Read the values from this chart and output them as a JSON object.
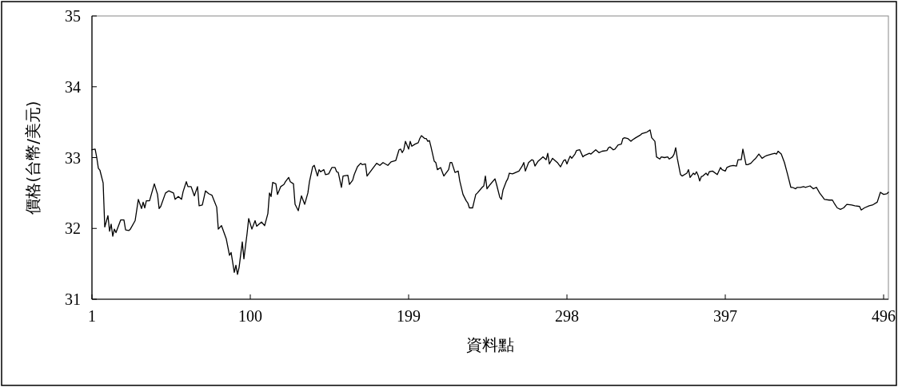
{
  "chart_data": {
    "type": "line",
    "xlabel": "資料點",
    "ylabel": "價格(台幣/美元)",
    "color": "#000000",
    "xlim": [
      1,
      499
    ],
    "ylim": [
      31,
      35
    ],
    "xticks": [
      1,
      100,
      199,
      298,
      397,
      496
    ],
    "yticks": [
      31,
      32,
      33,
      34,
      35
    ],
    "x": [
      1,
      3,
      4,
      5,
      6,
      8,
      9,
      11,
      12,
      13,
      14,
      15,
      16,
      19,
      21,
      22,
      24,
      25,
      28,
      30,
      32,
      33,
      34,
      35,
      37,
      40,
      42,
      43,
      44,
      47,
      49,
      52,
      53,
      55,
      57,
      58,
      60,
      61,
      63,
      65,
      67,
      68,
      70,
      72,
      74,
      76,
      79,
      80,
      82,
      85,
      87,
      88,
      90,
      91,
      92,
      93,
      95,
      96,
      98,
      99,
      101,
      103,
      104,
      107,
      109,
      111,
      112,
      113,
      114,
      116,
      117,
      119,
      121,
      122,
      124,
      125,
      127,
      128,
      130,
      132,
      134,
      136,
      137,
      139,
      140,
      142,
      143,
      144,
      146,
      147,
      149,
      151,
      153,
      154,
      155,
      157,
      158,
      161,
      162,
      164,
      165,
      167,
      169,
      170,
      172,
      173,
      176,
      179,
      181,
      183,
      186,
      188,
      191,
      193,
      194,
      195,
      196,
      197,
      199,
      200,
      201,
      203,
      205,
      206,
      207,
      209,
      210,
      211,
      212,
      213,
      215,
      216,
      217,
      219,
      221,
      224,
      225,
      226,
      228,
      230,
      231,
      233,
      235,
      236,
      237,
      239,
      241,
      242,
      245,
      246,
      247,
      248,
      250,
      253,
      254,
      256,
      257,
      258,
      260,
      261,
      262,
      264,
      268,
      270,
      271,
      272,
      274,
      276,
      277,
      278,
      280,
      282,
      283,
      285,
      286,
      287,
      289,
      291,
      292,
      294,
      296,
      297,
      298,
      299,
      300,
      301,
      303,
      304,
      306,
      308,
      309,
      312,
      313,
      316,
      318,
      320,
      323,
      324,
      325,
      327,
      328,
      330,
      332,
      333,
      334,
      336,
      338,
      339,
      341,
      344,
      345,
      348,
      350,
      351,
      353,
      354,
      356,
      357,
      359,
      361,
      362,
      364,
      365,
      366,
      367,
      369,
      370,
      373,
      374,
      375,
      377,
      378,
      379,
      380,
      381,
      382,
      383,
      385,
      386,
      387,
      389,
      392,
      394,
      395,
      397,
      398,
      400,
      402,
      404,
      405,
      407,
      408,
      410,
      411,
      413,
      415,
      416,
      418,
      419,
      420,
      422,
      423,
      426,
      428,
      429,
      430,
      432,
      434,
      436,
      438,
      439,
      441,
      442,
      444,
      446,
      447,
      450,
      452,
      454,
      456,
      458,
      459,
      462,
      464,
      465,
      467,
      469,
      471,
      473,
      476,
      478,
      481,
      482,
      484,
      487,
      489,
      492,
      494,
      496,
      498,
      499
    ],
    "values": [
      33.11,
      33.12,
      33.0,
      32.85,
      32.82,
      32.64,
      32.02,
      32.18,
      31.96,
      32.06,
      31.89,
      31.99,
      31.94,
      32.12,
      32.12,
      31.98,
      31.97,
      31.99,
      32.11,
      32.41,
      32.28,
      32.37,
      32.29,
      32.39,
      32.39,
      32.63,
      32.48,
      32.28,
      32.31,
      32.5,
      32.53,
      32.5,
      32.41,
      32.45,
      32.41,
      32.52,
      32.66,
      32.59,
      32.59,
      32.46,
      32.59,
      32.32,
      32.33,
      32.53,
      32.49,
      32.47,
      32.3,
      31.99,
      32.04,
      31.85,
      31.62,
      31.66,
      31.38,
      31.48,
      31.35,
      31.45,
      31.81,
      31.57,
      31.93,
      32.14,
      31.99,
      32.11,
      32.03,
      32.09,
      32.04,
      32.21,
      32.5,
      32.45,
      32.65,
      32.63,
      32.48,
      32.59,
      32.62,
      32.66,
      32.72,
      32.66,
      32.63,
      32.34,
      32.25,
      32.46,
      32.34,
      32.5,
      32.66,
      32.87,
      32.89,
      32.74,
      32.83,
      32.8,
      32.83,
      32.76,
      32.77,
      32.86,
      32.86,
      32.8,
      32.79,
      32.58,
      32.74,
      32.75,
      32.62,
      32.68,
      32.76,
      32.87,
      32.92,
      32.9,
      32.91,
      32.74,
      32.83,
      32.92,
      32.89,
      32.93,
      32.89,
      32.94,
      32.96,
      33.11,
      33.12,
      33.07,
      33.11,
      33.23,
      33.12,
      33.23,
      33.16,
      33.19,
      33.21,
      33.27,
      33.31,
      33.27,
      33.27,
      33.23,
      33.24,
      33.15,
      32.95,
      32.93,
      32.83,
      32.86,
      32.74,
      32.83,
      32.93,
      32.93,
      32.79,
      32.81,
      32.67,
      32.48,
      32.39,
      32.36,
      32.29,
      32.29,
      32.48,
      32.5,
      32.58,
      32.6,
      32.74,
      32.56,
      32.62,
      32.7,
      32.62,
      32.44,
      32.41,
      32.54,
      32.66,
      32.7,
      32.78,
      32.77,
      32.81,
      32.88,
      32.93,
      32.81,
      32.93,
      32.97,
      32.96,
      32.88,
      32.95,
      32.99,
      33.01,
      32.97,
      33.06,
      32.91,
      32.99,
      32.95,
      32.93,
      32.87,
      32.96,
      32.97,
      32.91,
      32.97,
      33.02,
      32.99,
      33.05,
      33.1,
      33.11,
      33.01,
      33.03,
      33.06,
      33.05,
      33.11,
      33.07,
      33.09,
      33.1,
      33.14,
      33.15,
      33.11,
      33.12,
      33.18,
      33.19,
      33.27,
      33.28,
      33.27,
      33.23,
      33.25,
      33.28,
      33.32,
      33.34,
      33.36,
      33.39,
      33.28,
      33.23,
      33.01,
      32.98,
      33.01,
      33.0,
      33.01,
      32.98,
      33.01,
      33.05,
      33.14,
      32.99,
      32.76,
      32.74,
      32.78,
      32.83,
      32.72,
      32.78,
      32.76,
      32.8,
      32.75,
      32.67,
      32.73,
      32.74,
      32.78,
      32.75,
      32.8,
      32.81,
      32.76,
      32.86,
      32.83,
      32.81,
      32.86,
      32.88,
      32.89,
      32.88,
      32.97,
      32.97,
      33.12,
      32.9,
      32.9,
      32.92,
      32.97,
      32.99,
      33.05,
      33.02,
      32.99,
      33.02,
      33.03,
      33.05,
      33.06,
      33.05,
      33.09,
      33.05,
      32.93,
      32.76,
      32.58,
      32.58,
      32.56,
      32.58,
      32.58,
      32.59,
      32.58,
      32.6,
      32.56,
      32.58,
      32.5,
      32.44,
      32.41,
      32.4,
      32.4,
      32.36,
      32.29,
      32.27,
      32.29,
      32.34,
      32.33,
      32.32,
      32.31,
      32.26,
      32.29,
      32.32,
      32.33,
      32.37,
      32.51,
      32.48,
      32.49,
      32.51
    ]
  }
}
